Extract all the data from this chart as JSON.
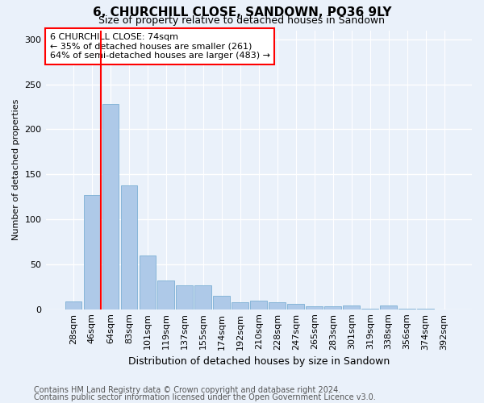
{
  "title1": "6, CHURCHILL CLOSE, SANDOWN, PO36 9LY",
  "title2": "Size of property relative to detached houses in Sandown",
  "xlabel": "Distribution of detached houses by size in Sandown",
  "ylabel": "Number of detached properties",
  "footnote1": "Contains HM Land Registry data © Crown copyright and database right 2024.",
  "footnote2": "Contains public sector information licensed under the Open Government Licence v3.0.",
  "categories": [
    "28sqm",
    "46sqm",
    "64sqm",
    "83sqm",
    "101sqm",
    "119sqm",
    "137sqm",
    "155sqm",
    "174sqm",
    "192sqm",
    "210sqm",
    "228sqm",
    "247sqm",
    "265sqm",
    "283sqm",
    "301sqm",
    "319sqm",
    "338sqm",
    "356sqm",
    "374sqm",
    "392sqm"
  ],
  "values": [
    9,
    127,
    228,
    138,
    60,
    32,
    27,
    27,
    15,
    8,
    10,
    8,
    6,
    3,
    3,
    4,
    1,
    4,
    1,
    1,
    0
  ],
  "bar_color": "#aec9e8",
  "bar_edge_color": "#7bafd4",
  "vline_x": 1.5,
  "vline_color": "red",
  "annotation_text": "6 CHURCHILL CLOSE: 74sqm\n← 35% of detached houses are smaller (261)\n64% of semi-detached houses are larger (483) →",
  "box_color": "white",
  "box_edge_color": "red",
  "ylim": [
    0,
    310
  ],
  "yticks": [
    0,
    50,
    100,
    150,
    200,
    250,
    300
  ],
  "background_color": "#eaf1fa",
  "grid_color": "white",
  "title1_fontsize": 11,
  "title2_fontsize": 9,
  "ylabel_fontsize": 8,
  "xlabel_fontsize": 9,
  "footnote_fontsize": 7,
  "tick_fontsize": 8,
  "annot_fontsize": 8
}
